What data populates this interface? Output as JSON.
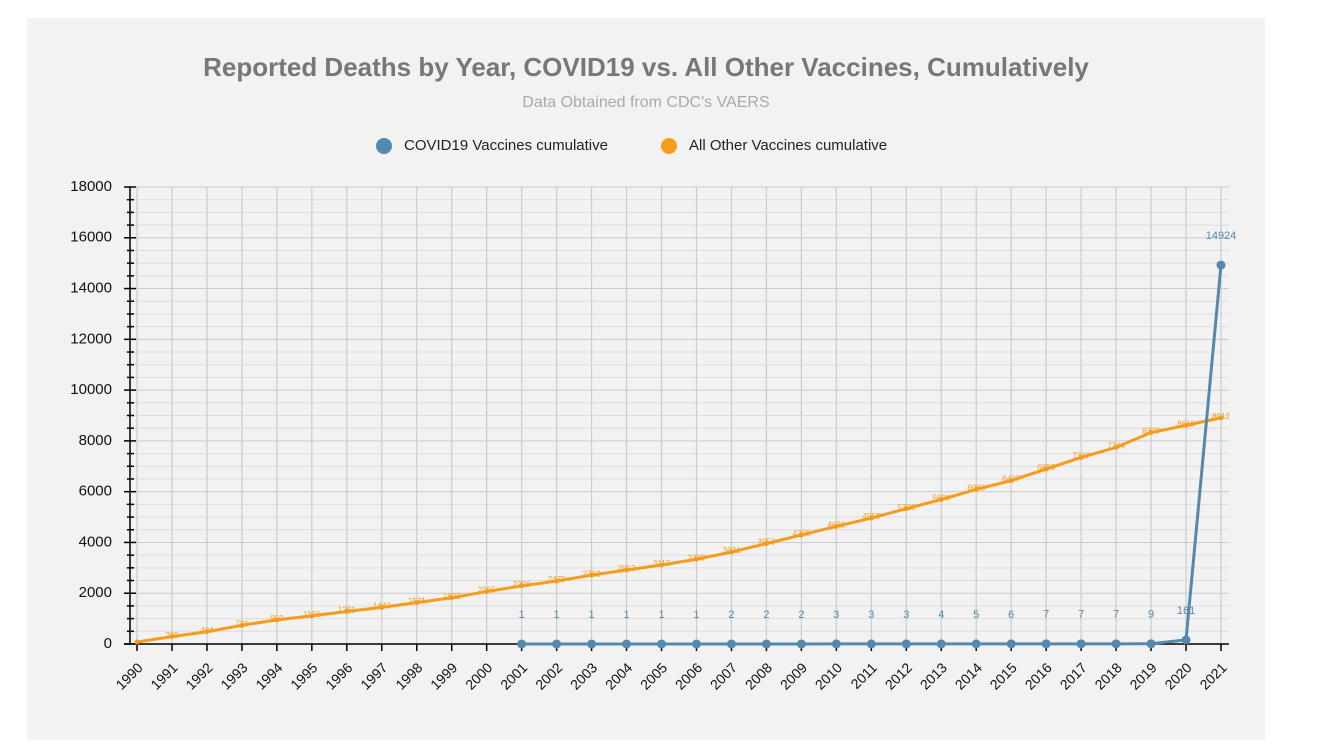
{
  "chart_data": {
    "type": "line",
    "title": "Reported Deaths by Year, COVID19 vs. All Other Vaccines, Cumulatively",
    "subtitle": "Data Obtained from CDC's VAERS",
    "categories": [
      "1990",
      "1991",
      "1992",
      "1993",
      "1994",
      "1995",
      "1996",
      "1997",
      "1998",
      "1999",
      "2000",
      "2001",
      "2002",
      "2003",
      "2004",
      "2005",
      "2006",
      "2007",
      "2008",
      "2009",
      "2010",
      "2011",
      "2012",
      "2013",
      "2014",
      "2015",
      "2016",
      "2017",
      "2018",
      "2019",
      "2020",
      "2021"
    ],
    "series": [
      {
        "name": "COVID19 Vaccines cumulative",
        "color": "#5489ad",
        "values": [
          null,
          null,
          null,
          null,
          null,
          null,
          null,
          null,
          null,
          null,
          null,
          1,
          1,
          1,
          1,
          1,
          1,
          2,
          2,
          2,
          3,
          3,
          3,
          4,
          5,
          6,
          7,
          7,
          7,
          9,
          161,
          14924
        ]
      },
      {
        "name": "All Other Vaccines cumulative",
        "color": "#f59c1a",
        "values": [
          80,
          289,
          484,
          736,
          950,
          1106,
          1281,
          1443,
          1631,
          1822,
          2065,
          2290,
          2479,
          2712,
          2913,
          3113,
          3339,
          3621,
          3953,
          4295,
          4632,
          4959,
          5328,
          5690,
          6088,
          6437,
          6890,
          7347,
          7744,
          8329,
          8610,
          8912
        ],
        "value_labels": [
          null,
          "289",
          "484",
          "736",
          "950",
          "1106",
          "1281",
          "1443",
          "1631",
          "1822",
          "2065",
          "2290",
          "2479",
          "2712",
          "2913",
          "3113",
          "3339",
          "3621",
          "3953",
          "4295",
          "4632",
          "4959",
          "5328",
          "5690",
          "6088",
          "6437",
          "6890",
          "7347",
          "7744",
          "8329",
          "8610",
          "8912"
        ]
      }
    ],
    "ylim": [
      0,
      18000
    ],
    "yticks": [
      0,
      2000,
      4000,
      6000,
      8000,
      10000,
      12000,
      14000,
      16000,
      18000
    ],
    "grid": true,
    "legend": "top"
  }
}
